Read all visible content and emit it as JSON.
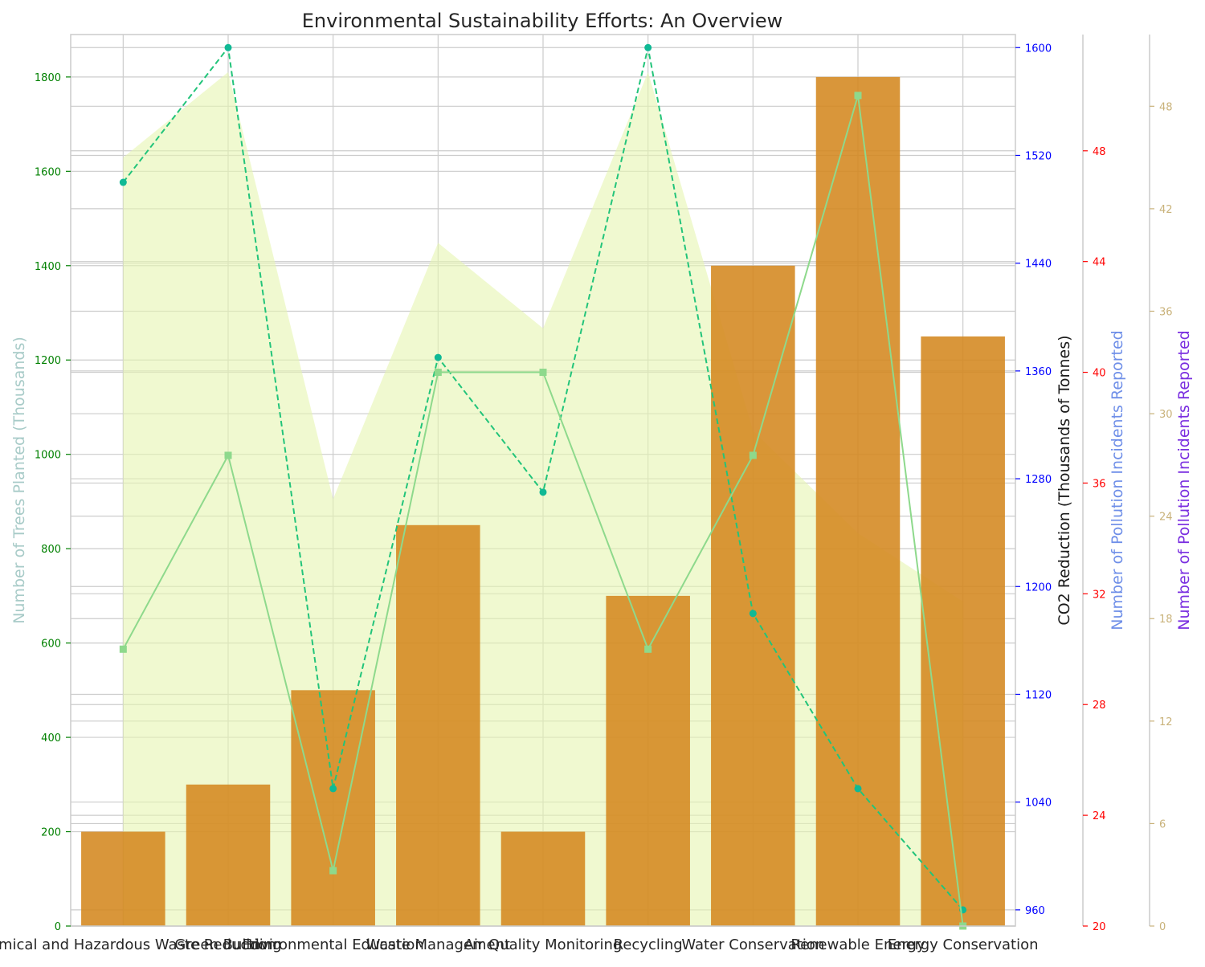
{
  "chart_data": {
    "type": "bar",
    "title": "Environmental Sustainability Efforts: An Overview",
    "categories": [
      "Chemical and Hazardous Waste Reduction",
      "Green Building",
      "Environmental Education",
      "Waste Management",
      "Air Quality Monitoring",
      "Recycling",
      "Water Conservation",
      "Renewable Energy",
      "Energy Conservation"
    ],
    "axes": {
      "left": {
        "label": "Number of Trees Planted (Thousands)",
        "label_color": "#a8cbc8",
        "tick_color": "#008000",
        "ylim": [
          0,
          1890
        ],
        "ticks": [
          0,
          200,
          400,
          600,
          800,
          1000,
          1200,
          1400,
          1600,
          1800
        ]
      },
      "right1": {
        "label": "CO2 Reduction (Thousands of Tonnes)",
        "label_color": "#1a1a1a",
        "tick_color": "#0000ff",
        "ylim": [
          948.0,
          1609.7
        ],
        "ticks": [
          960,
          1040,
          1120,
          1200,
          1280,
          1360,
          1440,
          1520,
          1600
        ]
      },
      "right2": {
        "label": "Number of Pollution Incidents Reported",
        "label_color": "#6f8fe8",
        "tick_color": "#ff0000",
        "ylim": [
          20,
          52.2
        ],
        "ticks": [
          20,
          24,
          28,
          32,
          36,
          40,
          44,
          48
        ]
      },
      "right3": {
        "label": "Number of Pollution Incidents Reported",
        "label_color": "#7a2ee0",
        "tick_color": "#c9b27a",
        "ylim": [
          0,
          52.2
        ],
        "ticks": [
          0,
          6,
          12,
          18,
          24,
          30,
          36,
          42,
          48
        ]
      }
    },
    "series": [
      {
        "kind": "bar",
        "axis": "left",
        "color": "#d4881f",
        "values": [
          200,
          300,
          500,
          850,
          200,
          700,
          1400,
          1800,
          1250
        ]
      },
      {
        "kind": "line-dashed",
        "axis": "right1",
        "color": "#22c47a",
        "marker_color": "#10b995",
        "values": [
          1500,
          1600,
          1050,
          1370,
          1270,
          1600,
          1180,
          1050,
          960
        ]
      },
      {
        "kind": "line",
        "axis": "right2",
        "color": "#8ed98c",
        "marker_color": "#8ed98c",
        "values": [
          30,
          37,
          22,
          40,
          40,
          30,
          37,
          50,
          20
        ]
      },
      {
        "kind": "area",
        "axis": "right3",
        "color": "#e6f5b0",
        "values": [
          45,
          50,
          25,
          40,
          35,
          50,
          29,
          23,
          19
        ]
      }
    ],
    "grid": true
  }
}
